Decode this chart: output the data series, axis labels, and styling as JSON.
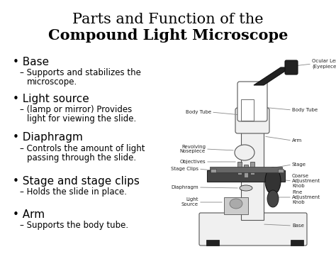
{
  "title_line1": "Parts and Function of the",
  "title_line2": "Compound Light Microscope",
  "title_fontsize": 15,
  "background_color": "#ffffff",
  "text_color": "#000000",
  "bullet_items": [
    {
      "bullet": "Base",
      "sub1": "Supports and stabilizes the",
      "sub2": "microscope."
    },
    {
      "bullet": "Light source",
      "sub1": "(lamp or mirror) Provides",
      "sub2": "light for viewing the slide."
    },
    {
      "bullet": "Diaphragm",
      "sub1": "Controls the amount of light",
      "sub2": "passing through the slide."
    },
    {
      "bullet": "Stage and stage clips",
      "sub1": "Holds the slide in place.",
      "sub2": ""
    },
    {
      "bullet": "Arm",
      "sub1": "Supports the body tube.",
      "sub2": ""
    }
  ],
  "bullet_fontsize": 11,
  "sub_fontsize": 8.5,
  "label_fontsize": 5.0,
  "line_color": "#888888",
  "mic_gray_light": "#f0f0f0",
  "mic_gray_mid": "#cccccc",
  "mic_gray_dark": "#999999",
  "mic_black": "#222222",
  "mic_white": "#ffffff",
  "mic_edge": "#555555"
}
